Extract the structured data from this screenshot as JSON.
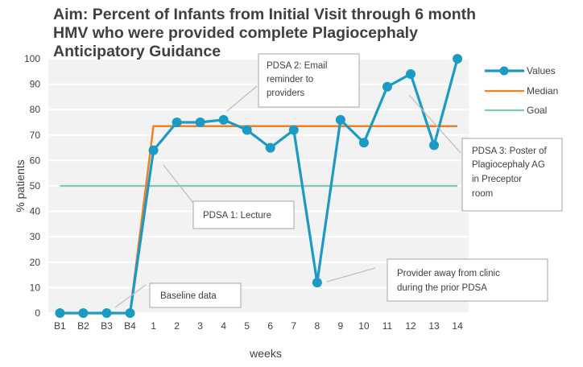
{
  "chart_data": {
    "type": "line",
    "title": "Aim: Percent of Infants from Initial Visit through 6 month HMV who were provided complete Plagiocephaly Anticipatory Guidance",
    "title_lines": [
      "Aim: Percent of Infants from Initial Visit through 6 month",
      "HMV who were provided complete Plagiocephaly",
      "Anticipatory Guidance"
    ],
    "xlabel": "weeks",
    "ylabel": "% patients",
    "ylim": [
      0,
      100
    ],
    "yticks": [
      0,
      10,
      20,
      30,
      40,
      50,
      60,
      70,
      80,
      90,
      100
    ],
    "grid": true,
    "legend_position": "right",
    "categories": [
      "B1",
      "B2",
      "B3",
      "B4",
      "1",
      "2",
      "3",
      "4",
      "5",
      "6",
      "7",
      "8",
      "9",
      "10",
      "11",
      "12",
      "13",
      "14"
    ],
    "series": [
      {
        "name": "Values",
        "color": "#1b9bc4",
        "values": [
          0,
          0,
          0,
          0,
          64,
          75,
          75,
          76,
          72,
          65,
          72,
          12,
          76,
          67,
          89,
          94,
          66,
          100
        ]
      },
      {
        "name": "Median",
        "color": "#f07f27",
        "values": [
          0,
          0,
          0,
          0,
          73.5,
          73.5,
          73.5,
          73.5,
          73.5,
          73.5,
          73.5,
          73.5,
          73.5,
          73.5,
          73.5,
          73.5,
          73.5,
          73.5
        ]
      },
      {
        "name": "Goal",
        "color": "#7fcba4",
        "values": [
          50,
          50,
          50,
          50,
          50,
          50,
          50,
          50,
          50,
          50,
          50,
          50,
          50,
          50,
          50,
          50,
          50,
          50
        ]
      }
    ],
    "annotations": [
      {
        "id": "pdsa2",
        "lines": [
          "PDSA 2: Email",
          "reminder to",
          "providers"
        ]
      },
      {
        "id": "pdsa3",
        "lines": [
          "PDSA 3: Poster of",
          "Plagiocephaly AG",
          "in Preceptor",
          "room"
        ]
      },
      {
        "id": "pdsa1",
        "lines": [
          "PDSA 1: Lecture"
        ]
      },
      {
        "id": "baseline",
        "lines": [
          "Baseline data"
        ]
      },
      {
        "id": "away",
        "lines": [
          "Provider away from clinic",
          "during the prior PDSA"
        ]
      }
    ]
  }
}
